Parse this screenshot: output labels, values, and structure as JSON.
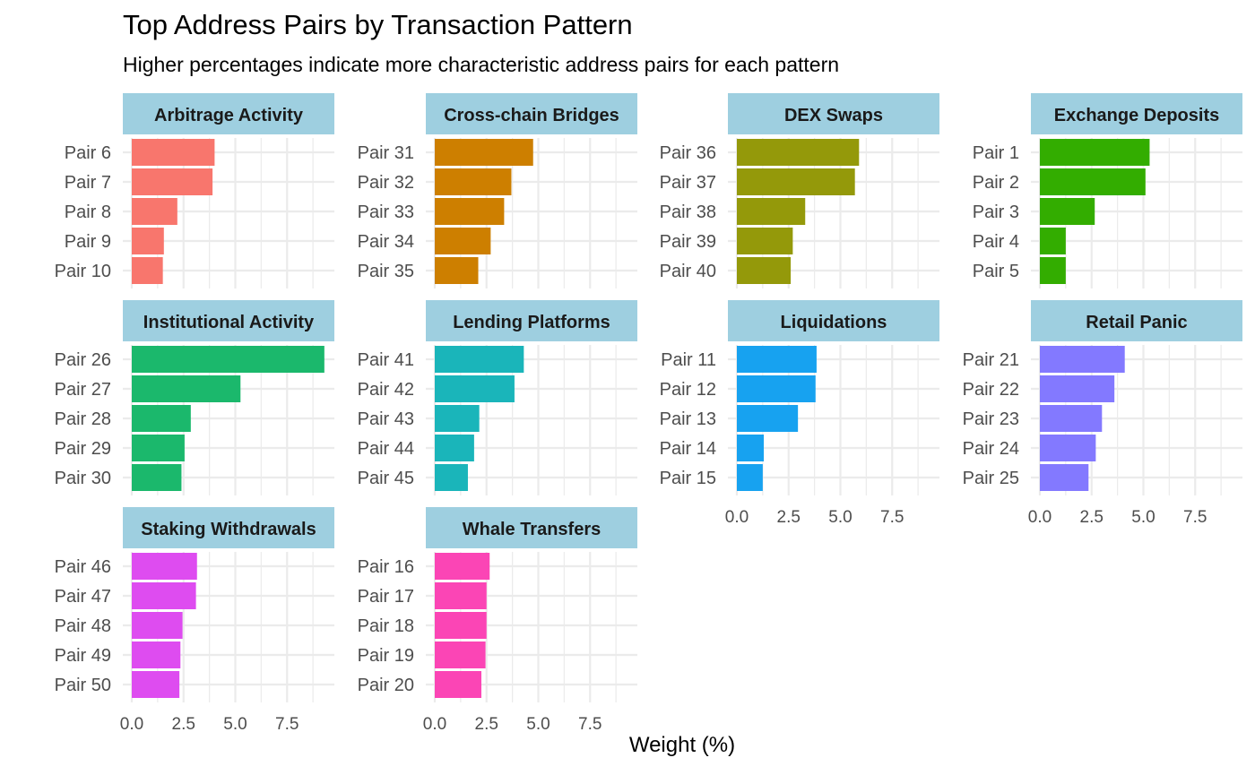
{
  "title": "Top Address Pairs by Transaction Pattern",
  "subtitle": "Higher percentages indicate more characteristic address pairs for each pattern",
  "chart_data": {
    "type": "bar",
    "orientation": "horizontal",
    "layout": "facet grid, 4 columns, 3 rows, shared x-axis",
    "xlabel": "Weight (%)",
    "ylabel": "",
    "xlim": [
      0,
      9.5
    ],
    "xticks": [
      "0.0",
      "2.5",
      "5.0",
      "7.5"
    ],
    "grid": true,
    "strip_color": "#9ECFE0",
    "facets": [
      {
        "name": "Arbitrage Activity",
        "color": "#F8766D",
        "categories": [
          "Pair 6",
          "Pair 7",
          "Pair 8",
          "Pair 9",
          "Pair 10"
        ],
        "values": [
          4.0,
          3.9,
          2.2,
          1.55,
          1.5
        ]
      },
      {
        "name": "Cross-chain Bridges",
        "color": "#CD7F00",
        "categories": [
          "Pair 31",
          "Pair 32",
          "Pair 33",
          "Pair 34",
          "Pair 35"
        ],
        "values": [
          4.75,
          3.7,
          3.35,
          2.7,
          2.1
        ]
      },
      {
        "name": "DEX Swaps",
        "color": "#94990A",
        "categories": [
          "Pair 36",
          "Pair 37",
          "Pair 38",
          "Pair 39",
          "Pair 40"
        ],
        "values": [
          5.9,
          5.7,
          3.3,
          2.7,
          2.6
        ]
      },
      {
        "name": "Exchange Deposits",
        "color": "#33AD00",
        "categories": [
          "Pair 1",
          "Pair 2",
          "Pair 3",
          "Pair 4",
          "Pair 5"
        ],
        "values": [
          5.3,
          5.1,
          2.65,
          1.25,
          1.25
        ]
      },
      {
        "name": "Institutional Activity",
        "color": "#1BB86C",
        "categories": [
          "Pair 26",
          "Pair 27",
          "Pair 28",
          "Pair 29",
          "Pair 30"
        ],
        "values": [
          9.3,
          5.25,
          2.85,
          2.55,
          2.4
        ]
      },
      {
        "name": "Lending Platforms",
        "color": "#1AB5BA",
        "categories": [
          "Pair 41",
          "Pair 42",
          "Pair 43",
          "Pair 44",
          "Pair 45"
        ],
        "values": [
          4.3,
          3.85,
          2.15,
          1.9,
          1.6
        ]
      },
      {
        "name": "Liquidations",
        "color": "#17A2F0",
        "categories": [
          "Pair 11",
          "Pair 12",
          "Pair 13",
          "Pair 14",
          "Pair 15"
        ],
        "values": [
          3.85,
          3.8,
          2.95,
          1.3,
          1.25
        ]
      },
      {
        "name": "Retail Panic",
        "color": "#8379FF",
        "categories": [
          "Pair 21",
          "Pair 22",
          "Pair 23",
          "Pair 24",
          "Pair 25"
        ],
        "values": [
          4.1,
          3.6,
          3.0,
          2.7,
          2.35
        ]
      },
      {
        "name": "Staking Withdrawals",
        "color": "#DE4CF0",
        "categories": [
          "Pair 46",
          "Pair 47",
          "Pair 48",
          "Pair 49",
          "Pair 50"
        ],
        "values": [
          3.15,
          3.1,
          2.45,
          2.35,
          2.3
        ]
      },
      {
        "name": "Whale Transfers",
        "color": "#FB45B5",
        "categories": [
          "Pair 16",
          "Pair 17",
          "Pair 18",
          "Pair 19",
          "Pair 20"
        ],
        "values": [
          2.65,
          2.5,
          2.5,
          2.45,
          2.25
        ]
      }
    ]
  }
}
